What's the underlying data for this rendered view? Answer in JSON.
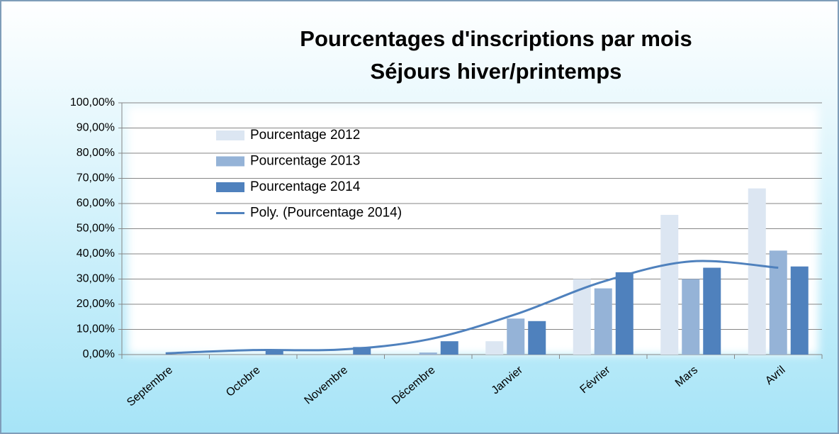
{
  "chart_data": {
    "type": "bar",
    "title": "Pourcentages d'inscriptions par mois",
    "subtitle": "Séjours hiver/printemps",
    "categories": [
      "Septembre",
      "Octobre",
      "Novembre",
      "Décembre",
      "Janvier",
      "Février",
      "Mars",
      "Avril"
    ],
    "series": [
      {
        "name": "Pourcentage 2012",
        "color": "#dce6f2",
        "values": [
          0,
          0,
          0,
          0,
          5.3,
          30,
          55.5,
          66
        ]
      },
      {
        "name": "Pourcentage 2013",
        "color": "#95b3d7",
        "values": [
          0,
          0,
          0,
          0.8,
          14.3,
          26.3,
          30,
          41.3
        ]
      },
      {
        "name": "Pourcentage 2014",
        "color": "#4f81bd",
        "values": [
          0,
          2,
          3,
          5.3,
          13.3,
          32.7,
          34.5,
          35
        ]
      },
      {
        "name": "Poly. (Pourcentage 2014)",
        "color": "#4f81bd",
        "type": "line",
        "values": [
          0.5,
          1.8,
          2,
          6,
          16,
          29,
          37,
          34.5
        ]
      }
    ],
    "ylim": [
      0,
      100
    ],
    "yticks": [
      {
        "value": 0,
        "label": "0,00%"
      },
      {
        "value": 10,
        "label": "10,00%"
      },
      {
        "value": 20,
        "label": "20,00%"
      },
      {
        "value": 30,
        "label": "30,00%"
      },
      {
        "value": 40,
        "label": "40,00%"
      },
      {
        "value": 50,
        "label": "50,00%"
      },
      {
        "value": 60,
        "label": "60,00%"
      },
      {
        "value": 70,
        "label": "70,00%"
      },
      {
        "value": 80,
        "label": "80,00%"
      },
      {
        "value": 90,
        "label": "90,00%"
      },
      {
        "value": 100,
        "label": "100,00%"
      }
    ],
    "grid": true,
    "legend": "top-left"
  }
}
